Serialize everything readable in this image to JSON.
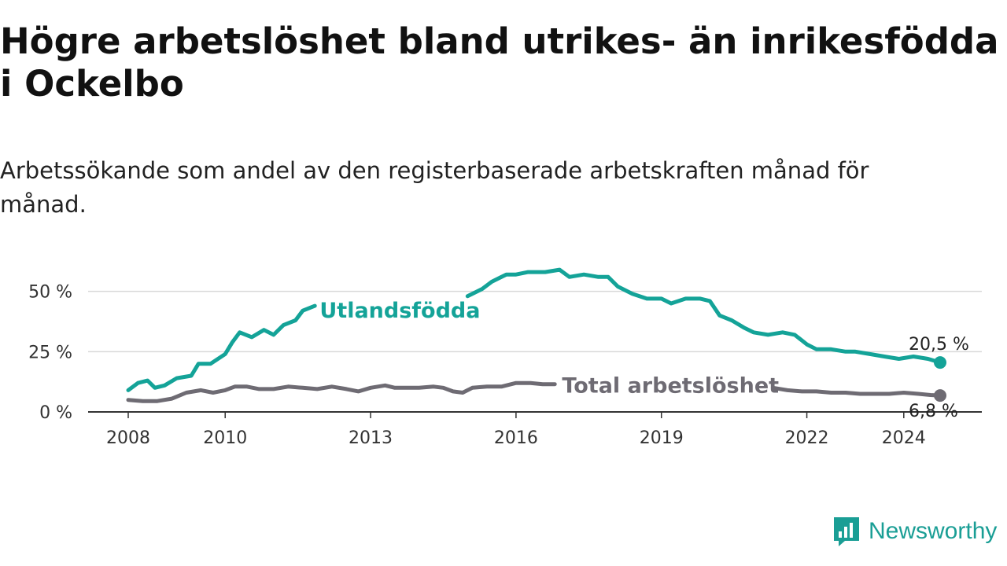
{
  "header": {
    "title": "Högre arbetslöshet bland utrikes- än inrikesfödda i Ockelbo",
    "subtitle": "Arbetssökande som andel av den registerbaserade arbetskraften månad för månad."
  },
  "brand": {
    "name": "Newsworthy",
    "icon": "newsworthy-logo-icon",
    "color": "#1a9e95"
  },
  "chart_data": {
    "type": "line",
    "x_unit": "year",
    "xlim": [
      2007.6,
      2025.0
    ],
    "ylim": [
      0,
      60
    ],
    "y_ticks": [
      {
        "value": 0,
        "label": "0 %"
      },
      {
        "value": 25,
        "label": "25 %"
      },
      {
        "value": 50,
        "label": "50 %"
      }
    ],
    "x_ticks": [
      {
        "value": 2008,
        "label": "2008"
      },
      {
        "value": 2010,
        "label": "2010"
      },
      {
        "value": 2013,
        "label": "2013"
      },
      {
        "value": 2016,
        "label": "2016"
      },
      {
        "value": 2019,
        "label": "2019"
      },
      {
        "value": 2022,
        "label": "2022"
      },
      {
        "value": 2024,
        "label": "2024"
      }
    ],
    "grid": {
      "horizontal": true,
      "vertical": false
    },
    "legend": "inline labels",
    "series": [
      {
        "name": "Utlandsfödda",
        "color": "#14a398",
        "end_label": "20,5 %",
        "gaps": [
          [
            2011.9,
            2014.9
          ]
        ],
        "points": [
          [
            2008.0,
            9
          ],
          [
            2008.2,
            12
          ],
          [
            2008.4,
            13
          ],
          [
            2008.55,
            10
          ],
          [
            2008.75,
            11
          ],
          [
            2009.0,
            14
          ],
          [
            2009.3,
            15
          ],
          [
            2009.45,
            20
          ],
          [
            2009.7,
            20
          ],
          [
            2010.0,
            24
          ],
          [
            2010.15,
            29
          ],
          [
            2010.3,
            33
          ],
          [
            2010.55,
            31
          ],
          [
            2010.8,
            34
          ],
          [
            2011.0,
            32
          ],
          [
            2011.2,
            36
          ],
          [
            2011.45,
            38
          ],
          [
            2011.6,
            42
          ],
          [
            2011.85,
            44
          ],
          [
            2015.0,
            48
          ],
          [
            2015.3,
            51
          ],
          [
            2015.5,
            54
          ],
          [
            2015.8,
            57
          ],
          [
            2016.0,
            57
          ],
          [
            2016.25,
            58
          ],
          [
            2016.6,
            58
          ],
          [
            2016.9,
            59
          ],
          [
            2017.1,
            56
          ],
          [
            2017.4,
            57
          ],
          [
            2017.7,
            56
          ],
          [
            2017.9,
            56
          ],
          [
            2018.1,
            52
          ],
          [
            2018.4,
            49
          ],
          [
            2018.7,
            47
          ],
          [
            2019.0,
            47
          ],
          [
            2019.2,
            45
          ],
          [
            2019.5,
            47
          ],
          [
            2019.8,
            47
          ],
          [
            2020.0,
            46
          ],
          [
            2020.2,
            40
          ],
          [
            2020.45,
            38
          ],
          [
            2020.7,
            35
          ],
          [
            2020.9,
            33
          ],
          [
            2021.2,
            32
          ],
          [
            2021.5,
            33
          ],
          [
            2021.75,
            32
          ],
          [
            2022.0,
            28
          ],
          [
            2022.2,
            26
          ],
          [
            2022.5,
            26
          ],
          [
            2022.8,
            25
          ],
          [
            2023.0,
            25
          ],
          [
            2023.3,
            24
          ],
          [
            2023.6,
            23
          ],
          [
            2023.9,
            22
          ],
          [
            2024.2,
            23
          ],
          [
            2024.5,
            22
          ],
          [
            2024.75,
            20.5
          ]
        ]
      },
      {
        "name": "Total arbetslöshet",
        "color": "#6e6b73",
        "end_label": "6,8 %",
        "gaps": [
          [
            2016.85,
            2021.25
          ]
        ],
        "points": [
          [
            2008.0,
            5
          ],
          [
            2008.3,
            4.5
          ],
          [
            2008.6,
            4.5
          ],
          [
            2008.9,
            5.5
          ],
          [
            2009.2,
            8
          ],
          [
            2009.5,
            9
          ],
          [
            2009.75,
            8
          ],
          [
            2010.0,
            9
          ],
          [
            2010.2,
            10.5
          ],
          [
            2010.45,
            10.5
          ],
          [
            2010.7,
            9.5
          ],
          [
            2011.0,
            9.5
          ],
          [
            2011.3,
            10.5
          ],
          [
            2011.6,
            10
          ],
          [
            2011.9,
            9.5
          ],
          [
            2012.2,
            10.5
          ],
          [
            2012.5,
            9.5
          ],
          [
            2012.75,
            8.5
          ],
          [
            2013.0,
            10
          ],
          [
            2013.3,
            11
          ],
          [
            2013.5,
            10
          ],
          [
            2013.75,
            10
          ],
          [
            2014.0,
            10
          ],
          [
            2014.3,
            10.5
          ],
          [
            2014.5,
            10
          ],
          [
            2014.7,
            8.5
          ],
          [
            2014.9,
            8
          ],
          [
            2015.1,
            10
          ],
          [
            2015.4,
            10.5
          ],
          [
            2015.7,
            10.5
          ],
          [
            2016.0,
            12
          ],
          [
            2016.3,
            12
          ],
          [
            2016.55,
            11.5
          ],
          [
            2016.8,
            11.5
          ],
          [
            2021.3,
            10
          ],
          [
            2021.6,
            9
          ],
          [
            2021.9,
            8.5
          ],
          [
            2022.2,
            8.5
          ],
          [
            2022.5,
            8
          ],
          [
            2022.8,
            8
          ],
          [
            2023.1,
            7.5
          ],
          [
            2023.4,
            7.5
          ],
          [
            2023.7,
            7.5
          ],
          [
            2024.0,
            8
          ],
          [
            2024.3,
            7.5
          ],
          [
            2024.55,
            7
          ],
          [
            2024.75,
            6.8
          ]
        ]
      }
    ],
    "inline_labels": [
      {
        "series": 0,
        "text": "Utlandsfödda",
        "x": 2011.95,
        "y": 42
      },
      {
        "series": 1,
        "text": "Total arbetslöshet",
        "x": 2016.95,
        "y": 11
      }
    ]
  }
}
